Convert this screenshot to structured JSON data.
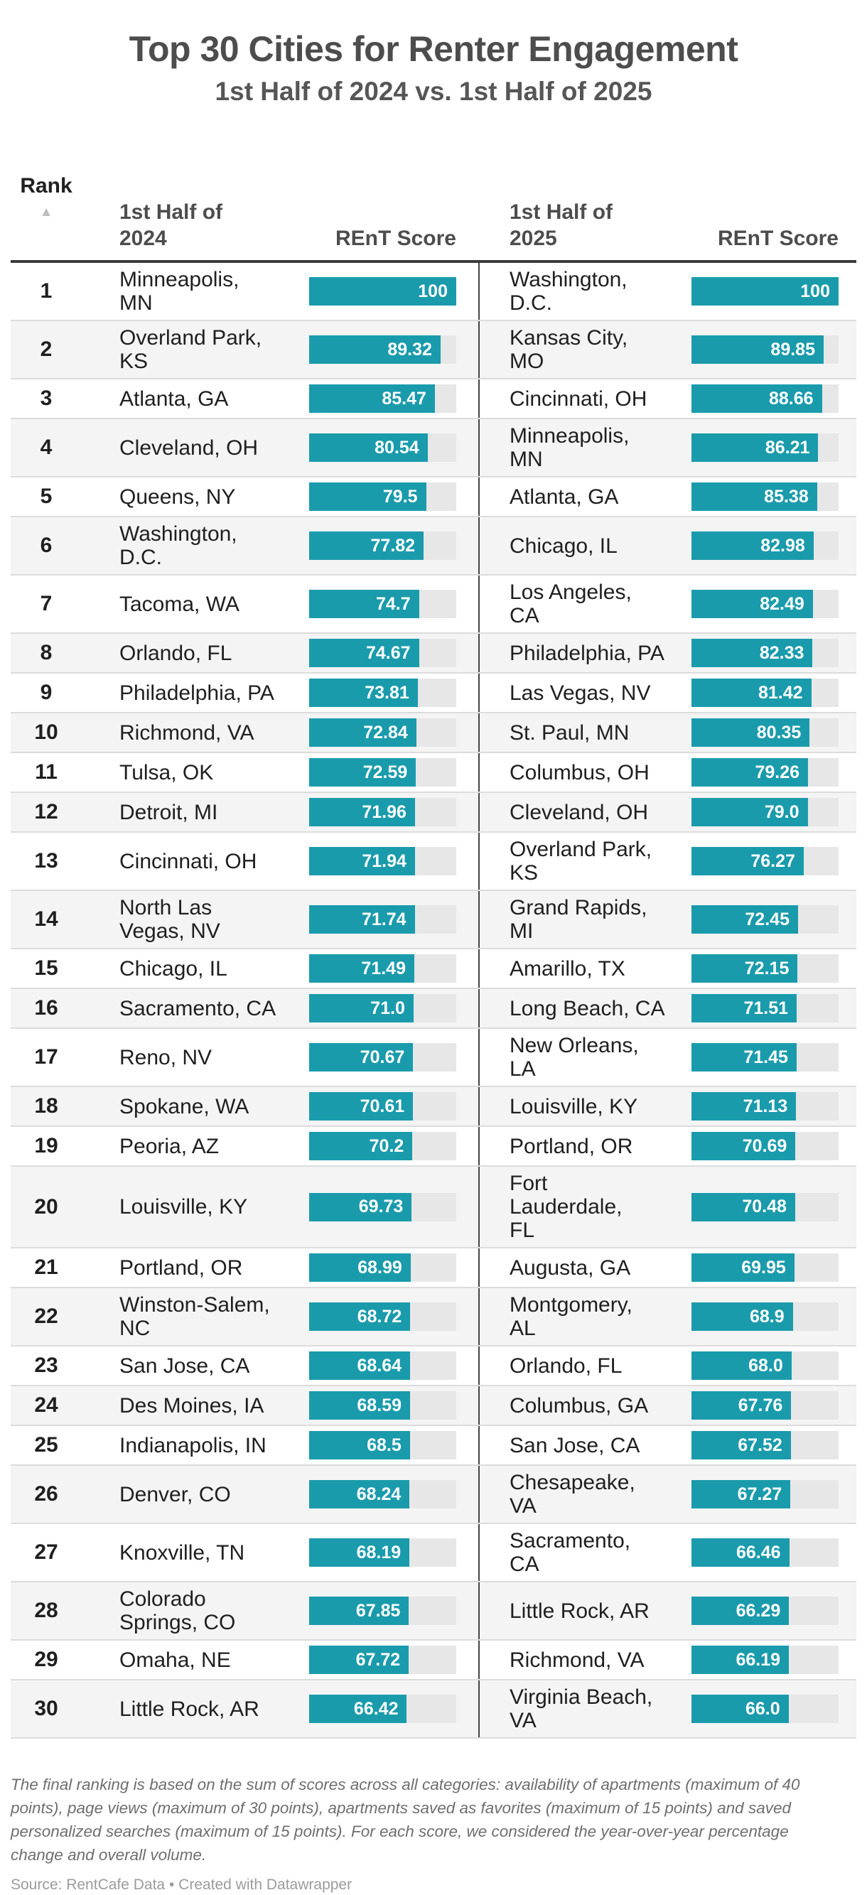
{
  "title": "Top 30 Cities for Renter Engagement",
  "subtitle": "1st Half of 2024 vs. 1st Half of 2025",
  "colors": {
    "bar_fill": "#1A9BAC",
    "bar_track": "#E7E7E7",
    "row_stripe": "#F4F4F4",
    "header_rule": "#3A3A3A",
    "column_divider": "#444444"
  },
  "table": {
    "columns": {
      "rank": "Rank",
      "rank_sort_icon": "▲",
      "city_2024": "1st Half of\n2024",
      "score_2024": "REnT Score",
      "city_2025": "1st Half of\n2025",
      "score_2025": "REnT Score"
    },
    "rows": [
      {
        "rank": "1",
        "city24": "Minneapolis,\nMN",
        "score24": "100",
        "city25": "Washington,\nD.C.",
        "score25": "100"
      },
      {
        "rank": "2",
        "city24": "Overland Park,\nKS",
        "score24": "89.32",
        "city25": "Kansas City, MO",
        "score25": "89.85"
      },
      {
        "rank": "3",
        "city24": "Atlanta, GA",
        "score24": "85.47",
        "city25": "Cincinnati, OH",
        "score25": "88.66"
      },
      {
        "rank": "4",
        "city24": "Cleveland, OH",
        "score24": "80.54",
        "city25": "Minneapolis,\nMN",
        "score25": "86.21"
      },
      {
        "rank": "5",
        "city24": "Queens, NY",
        "score24": "79.5",
        "city25": "Atlanta, GA",
        "score25": "85.38"
      },
      {
        "rank": "6",
        "city24": "Washington,\nD.C.",
        "score24": "77.82",
        "city25": "Chicago, IL",
        "score25": "82.98"
      },
      {
        "rank": "7",
        "city24": "Tacoma, WA",
        "score24": "74.7",
        "city25": "Los Angeles, CA",
        "score25": "82.49"
      },
      {
        "rank": "8",
        "city24": "Orlando, FL",
        "score24": "74.67",
        "city25": "Philadelphia, PA",
        "score25": "82.33"
      },
      {
        "rank": "9",
        "city24": "Philadelphia, PA",
        "score24": "73.81",
        "city25": "Las Vegas, NV",
        "score25": "81.42"
      },
      {
        "rank": "10",
        "city24": "Richmond, VA",
        "score24": "72.84",
        "city25": "St. Paul, MN",
        "score25": "80.35"
      },
      {
        "rank": "11",
        "city24": "Tulsa, OK",
        "score24": "72.59",
        "city25": "Columbus, OH",
        "score25": "79.26"
      },
      {
        "rank": "12",
        "city24": "Detroit, MI",
        "score24": "71.96",
        "city25": "Cleveland, OH",
        "score25": "79.0"
      },
      {
        "rank": "13",
        "city24": "Cincinnati, OH",
        "score24": "71.94",
        "city25": "Overland Park,\nKS",
        "score25": "76.27"
      },
      {
        "rank": "14",
        "city24": "North Las\nVegas, NV",
        "score24": "71.74",
        "city25": "Grand Rapids,\nMI",
        "score25": "72.45"
      },
      {
        "rank": "15",
        "city24": "Chicago, IL",
        "score24": "71.49",
        "city25": "Amarillo, TX",
        "score25": "72.15"
      },
      {
        "rank": "16",
        "city24": "Sacramento, CA",
        "score24": "71.0",
        "city25": "Long Beach, CA",
        "score25": "71.51"
      },
      {
        "rank": "17",
        "city24": "Reno, NV",
        "score24": "70.67",
        "city25": "New Orleans,\nLA",
        "score25": "71.45"
      },
      {
        "rank": "18",
        "city24": "Spokane, WA",
        "score24": "70.61",
        "city25": "Louisville, KY",
        "score25": "71.13"
      },
      {
        "rank": "19",
        "city24": "Peoria, AZ",
        "score24": "70.2",
        "city25": "Portland, OR",
        "score25": "70.69"
      },
      {
        "rank": "20",
        "city24": "Louisville, KY",
        "score24": "69.73",
        "city25": "Fort Lauderdale,\nFL",
        "score25": "70.48"
      },
      {
        "rank": "21",
        "city24": "Portland, OR",
        "score24": "68.99",
        "city25": "Augusta, GA",
        "score25": "69.95"
      },
      {
        "rank": "22",
        "city24": "Winston-Salem,\nNC",
        "score24": "68.72",
        "city25": "Montgomery,\nAL",
        "score25": "68.9"
      },
      {
        "rank": "23",
        "city24": "San Jose, CA",
        "score24": "68.64",
        "city25": "Orlando, FL",
        "score25": "68.0"
      },
      {
        "rank": "24",
        "city24": "Des Moines, IA",
        "score24": "68.59",
        "city25": "Columbus, GA",
        "score25": "67.76"
      },
      {
        "rank": "25",
        "city24": "Indianapolis, IN",
        "score24": "68.5",
        "city25": "San Jose, CA",
        "score25": "67.52"
      },
      {
        "rank": "26",
        "city24": "Denver, CO",
        "score24": "68.24",
        "city25": "Chesapeake, VA",
        "score25": "67.27"
      },
      {
        "rank": "27",
        "city24": "Knoxville, TN",
        "score24": "68.19",
        "city25": "Sacramento, CA",
        "score25": "66.46"
      },
      {
        "rank": "28",
        "city24": "Colorado\nSprings, CO",
        "score24": "67.85",
        "city25": "Little Rock, AR",
        "score25": "66.29"
      },
      {
        "rank": "29",
        "city24": "Omaha, NE",
        "score24": "67.72",
        "city25": "Richmond, VA",
        "score25": "66.19"
      },
      {
        "rank": "30",
        "city24": "Little Rock, AR",
        "score24": "66.42",
        "city25": "Virginia Beach,\nVA",
        "score25": "66.0"
      }
    ]
  },
  "chart_data": {
    "type": "table",
    "title": "Top 30 Cities for Renter Engagement",
    "subtitle": "1st Half of 2024 vs. 1st Half of 2025",
    "columns": [
      "Rank",
      "1st Half of 2024",
      "REnT Score",
      "1st Half of 2025",
      "REnT Score"
    ],
    "sort": {
      "column": "Rank",
      "direction": "ascending"
    },
    "bar_range": [
      0,
      100
    ],
    "series": [
      {
        "name": "1st Half of 2024",
        "cities": [
          "Minneapolis, MN",
          "Overland Park, KS",
          "Atlanta, GA",
          "Cleveland, OH",
          "Queens, NY",
          "Washington, D.C.",
          "Tacoma, WA",
          "Orlando, FL",
          "Philadelphia, PA",
          "Richmond, VA",
          "Tulsa, OK",
          "Detroit, MI",
          "Cincinnati, OH",
          "North Las Vegas, NV",
          "Chicago, IL",
          "Sacramento, CA",
          "Reno, NV",
          "Spokane, WA",
          "Peoria, AZ",
          "Louisville, KY",
          "Portland, OR",
          "Winston-Salem, NC",
          "San Jose, CA",
          "Des Moines, IA",
          "Indianapolis, IN",
          "Denver, CO",
          "Knoxville, TN",
          "Colorado Springs, CO",
          "Omaha, NE",
          "Little Rock, AR"
        ],
        "scores": [
          100,
          89.32,
          85.47,
          80.54,
          79.5,
          77.82,
          74.7,
          74.67,
          73.81,
          72.84,
          72.59,
          71.96,
          71.94,
          71.74,
          71.49,
          71.0,
          70.67,
          70.61,
          70.2,
          69.73,
          68.99,
          68.72,
          68.64,
          68.59,
          68.5,
          68.24,
          68.19,
          67.85,
          67.72,
          66.42
        ]
      },
      {
        "name": "1st Half of 2025",
        "cities": [
          "Washington, D.C.",
          "Kansas City, MO",
          "Cincinnati, OH",
          "Minneapolis, MN",
          "Atlanta, GA",
          "Chicago, IL",
          "Los Angeles, CA",
          "Philadelphia, PA",
          "Las Vegas, NV",
          "St. Paul, MN",
          "Columbus, OH",
          "Cleveland, OH",
          "Overland Park, KS",
          "Grand Rapids, MI",
          "Amarillo, TX",
          "Long Beach, CA",
          "New Orleans, LA",
          "Louisville, KY",
          "Portland, OR",
          "Fort Lauderdale, FL",
          "Augusta, GA",
          "Montgomery, AL",
          "Orlando, FL",
          "Columbus, GA",
          "San Jose, CA",
          "Chesapeake, VA",
          "Sacramento, CA",
          "Little Rock, AR",
          "Richmond, VA",
          "Virginia Beach, VA"
        ],
        "scores": [
          100,
          89.85,
          88.66,
          86.21,
          85.38,
          82.98,
          82.49,
          82.33,
          81.42,
          80.35,
          79.26,
          79.0,
          76.27,
          72.45,
          72.15,
          71.51,
          71.45,
          71.13,
          70.69,
          70.48,
          69.95,
          68.9,
          68.0,
          67.76,
          67.52,
          67.27,
          66.46,
          66.29,
          66.19,
          66.0
        ]
      }
    ]
  },
  "footnote": "The final ranking is based on the sum of scores across all categories: availability of apartments (maximum of 40\npoints), page views (maximum of 30 points), apartments saved as favorites (maximum of 15 points) and saved\npersonalized searches (maximum of 15 points). For each score, we considered the year-over-year percentage\nchange and overall volume.",
  "source": {
    "label": "Source: RentCafe Data",
    "separator": " • ",
    "credit": "Created with Datawrapper"
  }
}
